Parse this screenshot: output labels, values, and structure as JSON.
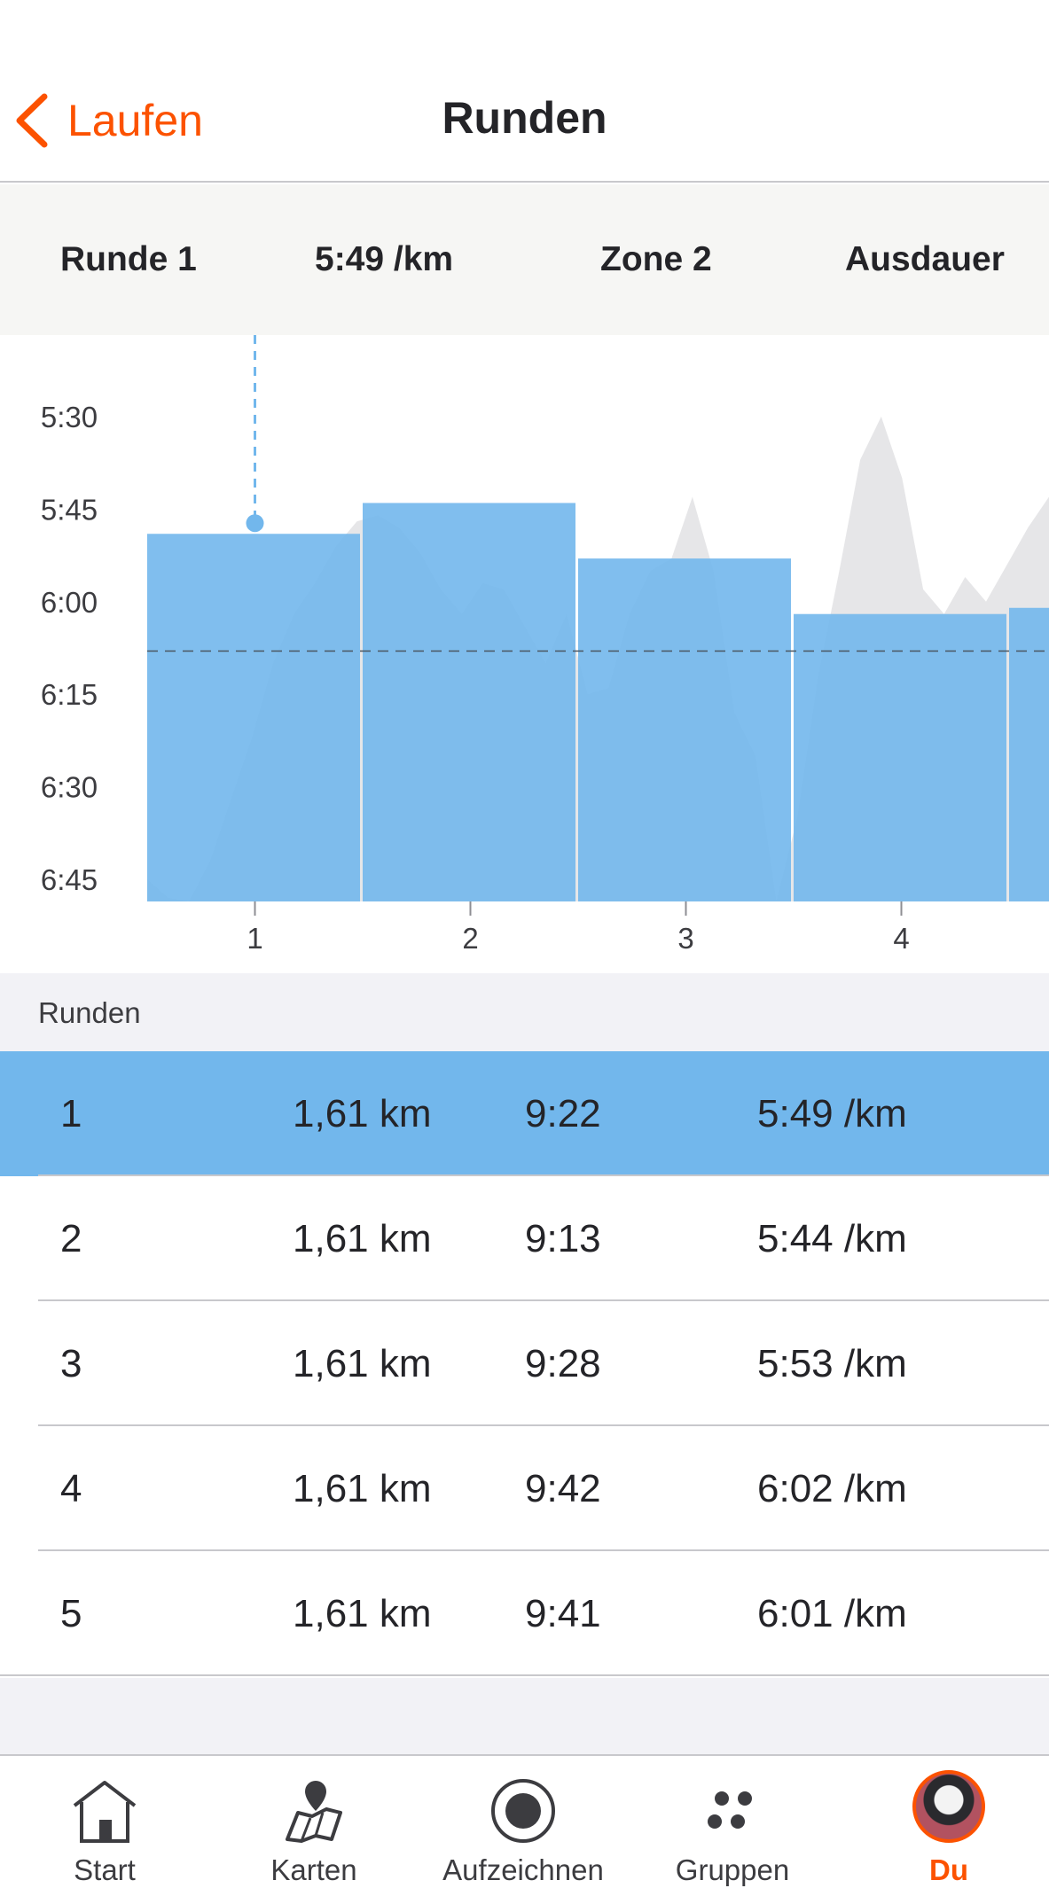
{
  "navbar": {
    "back_label": "Laufen",
    "title": "Runden"
  },
  "summary": {
    "lap": "Runde 1",
    "pace": "5:49 /km",
    "zone": "Zone 2",
    "type": "Ausdauer"
  },
  "colors": {
    "accent": "#fc5200",
    "lap_bar": "#72b7ec",
    "selected_row": "#72b7ec",
    "pace_area": "#e6e6e8"
  },
  "chart_data": {
    "type": "bar",
    "title": "",
    "xlabel": "",
    "ylabel": "",
    "y_tick_labels": [
      "5:30",
      "5:45",
      "6:00",
      "6:15",
      "6:30",
      "6:45"
    ],
    "y_ticks_seconds": [
      330,
      345,
      360,
      375,
      390,
      405
    ],
    "ylim_seconds": [
      327,
      408
    ],
    "y_inverted": true,
    "categories": [
      "1",
      "2",
      "3",
      "4",
      "5"
    ],
    "x_tick_labels": [
      "1",
      "2",
      "3",
      "4"
    ],
    "series": [
      {
        "values_seconds": [
          349,
          344,
          353,
          362,
          361
        ],
        "values_label": [
          "5:49",
          "5:44",
          "5:53",
          "6:02",
          "6:01"
        ]
      }
    ],
    "average_pace_seconds": 368,
    "selected_lap": 1,
    "pace_trace_seconds": [
      405,
      408,
      409,
      402,
      392,
      382,
      370,
      362,
      357,
      351,
      347,
      346,
      348,
      352,
      358,
      362,
      357,
      358,
      364,
      370,
      362,
      375,
      374,
      362,
      355,
      353,
      343,
      355,
      378,
      385,
      413,
      395,
      372,
      355,
      337,
      330,
      340,
      358,
      362,
      356,
      360,
      354,
      348,
      343
    ]
  },
  "laps_header": "Runden",
  "laps": [
    {
      "num": "1",
      "distance": "1,61 km",
      "time": "9:22",
      "pace": "5:49 /km",
      "selected": true
    },
    {
      "num": "2",
      "distance": "1,61 km",
      "time": "9:13",
      "pace": "5:44 /km",
      "selected": false
    },
    {
      "num": "3",
      "distance": "1,61 km",
      "time": "9:28",
      "pace": "5:53 /km",
      "selected": false
    },
    {
      "num": "4",
      "distance": "1,61 km",
      "time": "9:42",
      "pace": "6:02 /km",
      "selected": false
    },
    {
      "num": "5",
      "distance": "1,61 km",
      "time": "9:41",
      "pace": "6:01 /km",
      "selected": false
    }
  ],
  "tabs": [
    {
      "label": "Start",
      "icon": "home-icon",
      "active": false
    },
    {
      "label": "Karten",
      "icon": "map-icon",
      "active": false
    },
    {
      "label": "Aufzeichnen",
      "icon": "record-icon",
      "active": false
    },
    {
      "label": "Gruppen",
      "icon": "groups-icon",
      "active": false
    },
    {
      "label": "Du",
      "icon": "avatar",
      "active": true
    }
  ]
}
